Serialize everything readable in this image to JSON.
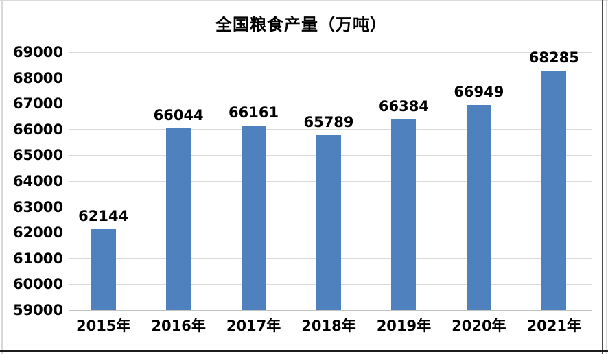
{
  "chart_data": {
    "type": "bar",
    "title": "全国粮食产量（万吨）",
    "categories": [
      "2015年",
      "2016年",
      "2017年",
      "2018年",
      "2019年",
      "2020年",
      "2021年"
    ],
    "values": [
      62144,
      66044,
      66161,
      65789,
      66384,
      66949,
      68285
    ],
    "data_labels": [
      "62144",
      "66044",
      "66161",
      "65789",
      "66384",
      "66949",
      "68285"
    ],
    "yticks": [
      59000,
      60000,
      61000,
      62000,
      63000,
      64000,
      65000,
      66000,
      67000,
      68000,
      69000
    ],
    "ylim": [
      59000,
      69000
    ],
    "xlabel": "",
    "ylabel": "",
    "grid": true,
    "legend": false,
    "bar_color": "#4e81bd",
    "gridline_color": "#d9d9d9",
    "text_color": "#000000",
    "background_color": "#ffffff"
  }
}
